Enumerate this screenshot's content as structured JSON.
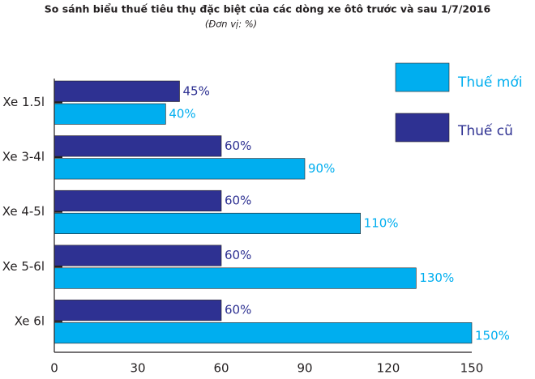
{
  "chart_data": {
    "type": "bar",
    "orientation": "horizontal",
    "title": "So sánh biểu thuế tiêu thụ đặc biệt của các dòng xe ôtô trước và sau 1/7/2016",
    "subtitle": "(Đơn vị: %)",
    "categories": [
      "Xe 1.5l",
      "Xe 3-4l",
      "Xe 4-5l",
      "Xe 5-6l",
      "Xe 6l"
    ],
    "series": [
      {
        "name": "Thuế mới",
        "color": "#00aeef",
        "values": [
          40,
          90,
          110,
          130,
          150
        ],
        "value_labels": [
          "40%",
          "90%",
          "110%",
          "130%",
          "150%"
        ]
      },
      {
        "name": "Thuế cũ",
        "color": "#2e3192",
        "values": [
          45,
          60,
          60,
          60,
          60
        ],
        "value_labels": [
          "45%",
          "60%",
          "60%",
          "60%",
          "60%"
        ]
      }
    ],
    "xlim": [
      0,
      150
    ],
    "xticks": [
      0,
      30,
      60,
      90,
      120,
      150
    ],
    "grid": false,
    "legend": "top-right"
  }
}
